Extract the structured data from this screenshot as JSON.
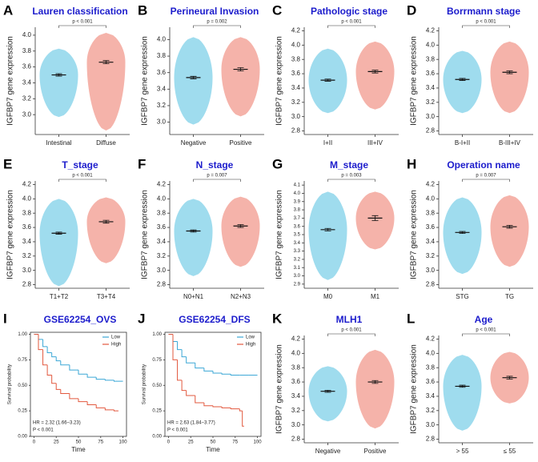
{
  "chart_data": [
    {
      "type": "violin",
      "panel": "A",
      "title": "Lauren classification",
      "y_label": "IGFBP7 gene expression",
      "categories": [
        "Intestinal",
        "Diffuse"
      ],
      "means": [
        3.5,
        3.66
      ],
      "errors": [
        0.015,
        0.02
      ],
      "mins": [
        2.97,
        2.8
      ],
      "maxs": [
        3.83,
        4.03
      ],
      "colors": [
        "#7fd0e8",
        "#f19a8e"
      ],
      "annotation": "p < 0.001",
      "ylim": [
        2.75,
        4.1
      ],
      "yticks": [
        {
          "value": 3,
          "label": "3.0"
        },
        3.2,
        3.4,
        3.6,
        3.8,
        {
          "value": 4,
          "label": "4.0"
        }
      ]
    },
    {
      "type": "violin",
      "panel": "B",
      "title": "Perineural Invasion",
      "y_label": "IGFBP7 gene expression",
      "categories": [
        "Negative",
        "Positive"
      ],
      "means": [
        3.54,
        3.64
      ],
      "errors": [
        0.015,
        0.02
      ],
      "mins": [
        2.97,
        3.07
      ],
      "maxs": [
        4.03,
        4.03
      ],
      "colors": [
        "#7fd0e8",
        "#f19a8e"
      ],
      "annotation": "p = 0.002",
      "ylim": [
        2.85,
        4.15
      ],
      "yticks": [
        {
          "value": 3,
          "label": "3.0"
        },
        3.2,
        3.4,
        3.6,
        3.8,
        {
          "value": 4,
          "label": "4.0"
        }
      ]
    },
    {
      "type": "violin",
      "panel": "C",
      "title": "Pathologic stage",
      "y_label": "IGFBP7 gene expression",
      "categories": [
        "I+II",
        "III+IV"
      ],
      "means": [
        3.51,
        3.63
      ],
      "errors": [
        0.015,
        0.02
      ],
      "mins": [
        3.05,
        3.1
      ],
      "maxs": [
        3.95,
        4.05
      ],
      "colors": [
        "#7fd0e8",
        "#f19a8e"
      ],
      "annotation": "p < 0.001",
      "ylim": [
        2.75,
        4.25
      ],
      "yticks": [
        2.8,
        {
          "value": 3,
          "label": "3.0"
        },
        3.2,
        3.4,
        3.6,
        3.8,
        {
          "value": 4,
          "label": "4.0"
        },
        4.2
      ]
    },
    {
      "type": "violin",
      "panel": "D",
      "title": "Borrmann stage",
      "y_label": "IGFBP7 gene expression",
      "categories": [
        "B-I+II",
        "B-III+IV"
      ],
      "means": [
        3.52,
        3.62
      ],
      "errors": [
        0.015,
        0.02
      ],
      "mins": [
        3.05,
        3.05
      ],
      "maxs": [
        3.92,
        4.05
      ],
      "colors": [
        "#7fd0e8",
        "#f19a8e"
      ],
      "annotation": "p < 0.001",
      "ylim": [
        2.75,
        4.25
      ],
      "yticks": [
        2.8,
        {
          "value": 3,
          "label": "3.0"
        },
        3.2,
        3.4,
        3.6,
        3.8,
        {
          "value": 4,
          "label": "4.0"
        },
        4.2
      ]
    },
    {
      "type": "violin",
      "panel": "E",
      "title": "T_stage",
      "y_label": "IGFBP7 gene expression",
      "categories": [
        "T1+T2",
        "T3+T4"
      ],
      "means": [
        3.52,
        3.68
      ],
      "errors": [
        0.015,
        0.02
      ],
      "mins": [
        2.78,
        3.1
      ],
      "maxs": [
        4.0,
        4.02
      ],
      "colors": [
        "#7fd0e8",
        "#f19a8e"
      ],
      "annotation": "p < 0.001",
      "ylim": [
        2.75,
        4.25
      ],
      "yticks": [
        2.8,
        {
          "value": 3,
          "label": "3.0"
        },
        3.2,
        3.4,
        3.6,
        3.8,
        {
          "value": 4,
          "label": "4.0"
        },
        4.2
      ]
    },
    {
      "type": "violin",
      "panel": "F",
      "title": "N_stage",
      "y_label": "IGFBP7 gene expression",
      "categories": [
        "N0+N1",
        "N2+N3"
      ],
      "means": [
        3.55,
        3.62
      ],
      "errors": [
        0.015,
        0.02
      ],
      "mins": [
        2.92,
        3.05
      ],
      "maxs": [
        4.0,
        4.03
      ],
      "colors": [
        "#7fd0e8",
        "#f19a8e"
      ],
      "annotation": "p = 0.007",
      "ylim": [
        2.75,
        4.25
      ],
      "yticks": [
        2.8,
        {
          "value": 3,
          "label": "3.0"
        },
        3.2,
        3.4,
        3.6,
        3.8,
        {
          "value": 4,
          "label": "4.0"
        },
        4.2
      ]
    },
    {
      "type": "violin",
      "panel": "G",
      "title": "M_stage",
      "y_label": "IGFBP7 gene expression",
      "categories": [
        "M0",
        "M1"
      ],
      "means": [
        3.56,
        3.7
      ],
      "errors": [
        0.015,
        0.03
      ],
      "mins": [
        2.95,
        3.32
      ],
      "maxs": [
        4.02,
        4.02
      ],
      "colors": [
        "#7fd0e8",
        "#f19a8e"
      ],
      "annotation": "p = 0.003",
      "ylim": [
        2.85,
        4.15
      ],
      "yticks": [
        2.9,
        {
          "value": 3,
          "label": "3.0"
        },
        3.1,
        3.2,
        3.3,
        3.4,
        3.5,
        3.6,
        3.7,
        3.8,
        3.9,
        {
          "value": 4,
          "label": "4.0"
        },
        4.1
      ]
    },
    {
      "type": "violin",
      "panel": "H",
      "title": "Operation name",
      "y_label": "IGFBP7 gene expression",
      "categories": [
        "STG",
        "TG"
      ],
      "means": [
        3.53,
        3.61
      ],
      "errors": [
        0.015,
        0.02
      ],
      "mins": [
        2.95,
        3.05
      ],
      "maxs": [
        4.02,
        4.05
      ],
      "colors": [
        "#7fd0e8",
        "#f19a8e"
      ],
      "annotation": "p = 0.007",
      "ylim": [
        2.75,
        4.25
      ],
      "yticks": [
        2.8,
        {
          "value": 3,
          "label": "3.0"
        },
        3.2,
        3.4,
        3.6,
        3.8,
        {
          "value": 4,
          "label": "4.0"
        },
        4.2
      ]
    },
    {
      "type": "line",
      "panel": "I",
      "title": "GSE62254_OVS",
      "x_label": "Time",
      "y_label": "Survival probability",
      "series": [
        {
          "name": "Low",
          "color": "#3ba7d6",
          "x": [
            0,
            5,
            10,
            15,
            20,
            25,
            30,
            40,
            50,
            60,
            70,
            80,
            90,
            100
          ],
          "values": [
            1,
            0.95,
            0.88,
            0.82,
            0.78,
            0.74,
            0.7,
            0.65,
            0.61,
            0.58,
            0.56,
            0.55,
            0.54,
            0.54
          ]
        },
        {
          "name": "High",
          "color": "#e2583e",
          "x": [
            0,
            5,
            10,
            15,
            20,
            25,
            30,
            40,
            50,
            60,
            70,
            80,
            90,
            95
          ],
          "values": [
            1,
            0.85,
            0.7,
            0.6,
            0.52,
            0.46,
            0.42,
            0.37,
            0.34,
            0.31,
            0.28,
            0.26,
            0.25,
            0.25
          ]
        }
      ],
      "annotations": [
        "HR = 2.32 (1.66−3.23)",
        "P < 0.001"
      ],
      "legend": "top-right",
      "xlim": [
        -4,
        104
      ],
      "ylim": [
        0,
        1.02
      ],
      "xticks": [
        0,
        25,
        50,
        75,
        100
      ],
      "yticks": [
        {
          "value": 0,
          "label": "0.00"
        },
        {
          "value": 0.25,
          "label": "0.25"
        },
        {
          "value": 0.5,
          "label": "0.50"
        },
        {
          "value": 0.75,
          "label": "0.75"
        },
        {
          "value": 1,
          "label": "1.00"
        }
      ]
    },
    {
      "type": "line",
      "panel": "J",
      "title": "GSE62254_DFS",
      "x_label": "Time",
      "y_label": "Survival probability",
      "series": [
        {
          "name": "Low",
          "color": "#3ba7d6",
          "x": [
            0,
            5,
            10,
            15,
            20,
            30,
            40,
            50,
            60,
            70,
            80,
            90,
            100
          ],
          "values": [
            1,
            0.93,
            0.85,
            0.78,
            0.72,
            0.67,
            0.64,
            0.62,
            0.61,
            0.6,
            0.6,
            0.6,
            0.6
          ]
        },
        {
          "name": "High",
          "color": "#e2583e",
          "x": [
            0,
            5,
            10,
            15,
            20,
            30,
            40,
            50,
            60,
            70,
            80,
            83,
            85
          ],
          "values": [
            1,
            0.75,
            0.55,
            0.45,
            0.4,
            0.33,
            0.3,
            0.29,
            0.28,
            0.27,
            0.25,
            0.1,
            0.1
          ]
        }
      ],
      "annotations": [
        "HR = 2.63 (1.84−3.77)",
        "P < 0.001"
      ],
      "legend": "top-right",
      "xlim": [
        -4,
        104
      ],
      "ylim": [
        0,
        1.02
      ],
      "xticks": [
        0,
        25,
        50,
        75,
        100
      ],
      "yticks": [
        {
          "value": 0,
          "label": "0.00"
        },
        {
          "value": 0.25,
          "label": "0.25"
        },
        {
          "value": 0.5,
          "label": "0.50"
        },
        {
          "value": 0.75,
          "label": "0.75"
        },
        {
          "value": 1,
          "label": "1.00"
        }
      ]
    },
    {
      "type": "violin",
      "panel": "K",
      "title": "MLH1",
      "y_label": "IGFBP7 gene expression",
      "categories": [
        "Negative",
        "Positive"
      ],
      "means": [
        3.47,
        3.6
      ],
      "errors": [
        0.015,
        0.02
      ],
      "mins": [
        3.05,
        2.95
      ],
      "maxs": [
        3.82,
        4.05
      ],
      "colors": [
        "#7fd0e8",
        "#f19a8e"
      ],
      "annotation": "p < 0.001",
      "ylim": [
        2.75,
        4.25
      ],
      "yticks": [
        2.8,
        {
          "value": 3,
          "label": "3.0"
        },
        3.2,
        3.4,
        3.6,
        3.8,
        {
          "value": 4,
          "label": "4.0"
        },
        4.2
      ]
    },
    {
      "type": "violin",
      "panel": "L",
      "title": "Age",
      "y_label": "IGFBP7 gene expression",
      "categories": [
        "> 55",
        "≤ 55"
      ],
      "means": [
        3.54,
        3.66
      ],
      "errors": [
        0.015,
        0.02
      ],
      "mins": [
        2.92,
        3.3
      ],
      "maxs": [
        3.98,
        4.02
      ],
      "colors": [
        "#7fd0e8",
        "#f19a8e"
      ],
      "annotation": "p < 0.001",
      "ylim": [
        2.75,
        4.25
      ],
      "yticks": [
        2.8,
        {
          "value": 3,
          "label": "3.0"
        },
        3.2,
        3.4,
        3.6,
        3.8,
        {
          "value": 4,
          "label": "4.0"
        },
        4.2
      ]
    }
  ]
}
